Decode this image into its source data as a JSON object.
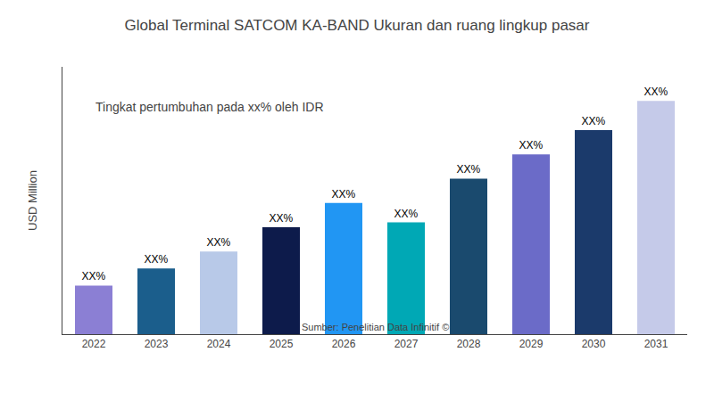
{
  "chart_data": {
    "type": "bar",
    "title": "Global Terminal SATCOM KA-BAND Ukuran dan ruang lingkup pasar",
    "ylabel": "USD Million",
    "annotations": [
      "Tingkat pertumbuhan pada xx% oleh IDR"
    ],
    "source": "Sumber: Penelitian Data Infinitif ©",
    "categories": [
      "2022",
      "2023",
      "2024",
      "2025",
      "2026",
      "2027",
      "2028",
      "2029",
      "2030",
      "2031"
    ],
    "values": [
      20,
      27,
      34,
      44,
      54,
      46,
      64,
      74,
      84,
      96
    ],
    "value_labels": [
      "XX%",
      "XX%",
      "XX%",
      "XX%",
      "XX%",
      "XX%",
      "XX%",
      "XX%",
      "XX%",
      "XX%"
    ],
    "colors": [
      "#8B7FD4",
      "#1B5E8C",
      "#B8C9E8",
      "#0D1B4B",
      "#2196F3",
      "#00A8B5",
      "#1A4A6E",
      "#6B6BC8",
      "#1B3A6B",
      "#C5CAE9"
    ],
    "ylim": [
      0,
      110
    ],
    "grid": false,
    "tick_labels": "x"
  }
}
